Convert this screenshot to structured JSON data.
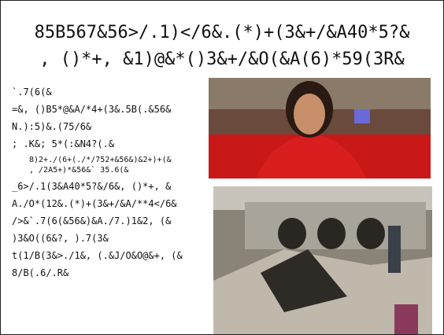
{
  "header": {
    "title_lines": [
      "85B567&56>/.1)</6&.(*)+(3&+/&A40*5?&",
      ", ()*+, &1)@&*()3&+/&O(&A(6)*59(3R&"
    ]
  },
  "body": {
    "lines": [
      {
        "text": "`.7(6(&",
        "level": 0
      },
      {
        "text": "=&, ()B5*@&A/*4+(3&.5B(.&56&",
        "level": 0
      },
      {
        "text": "N.):5)&.(75/6&",
        "level": 0
      },
      {
        "text": "; .K&; 5*(:&N4?(.&",
        "level": 0
      },
      {
        "text": "8)2+./(6+(./*/752+&56&)&2+)+(&",
        "level": 1
      },
      {
        "text": ", /2A5+)*&56&` 35.6(&",
        "level": 1
      },
      {
        "text": "_6>/.1(3&A40*5?&/6&, ()*+, &",
        "level": 0
      },
      {
        "text": "A./O*(12&.(*)+(3&+/&A/**4</6&",
        "level": 0
      },
      {
        "text": "/>&`.7(6(&56&)&A./7.)1&2, (&",
        "level": 0
      },
      {
        "text": ")3&O((6&?, ).7(3&",
        "level": 0
      },
      {
        "text": "t(1/B(3&>./1&, (.&J/O&O@&+, (&",
        "level": 0
      },
      {
        "text": "8/B(.6/.R&",
        "level": 0
      }
    ]
  }
}
